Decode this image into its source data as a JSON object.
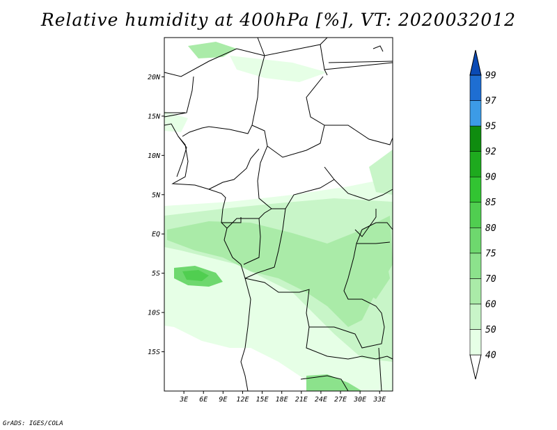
{
  "title": "Relative humidity at 400hPa [%], VT: 2020032012",
  "footer": "GrADS: IGES/COLA",
  "map": {
    "lon_range": [
      0,
      35
    ],
    "lat_range": [
      -20,
      25
    ],
    "lat_ticks": [
      {
        "value": 20,
        "label": "20N"
      },
      {
        "value": 15,
        "label": "15N"
      },
      {
        "value": 10,
        "label": "10N"
      },
      {
        "value": 5,
        "label": "5N"
      },
      {
        "value": 0,
        "label": "EQ"
      },
      {
        "value": -5,
        "label": "5S"
      },
      {
        "value": -10,
        "label": "10S"
      },
      {
        "value": -15,
        "label": "15S"
      }
    ],
    "lon_ticks": [
      {
        "value": 3,
        "label": "3E"
      },
      {
        "value": 6,
        "label": "6E"
      },
      {
        "value": 9,
        "label": "9E"
      },
      {
        "value": 12,
        "label": "12E"
      },
      {
        "value": 15,
        "label": "15E"
      },
      {
        "value": 18,
        "label": "18E"
      },
      {
        "value": 21,
        "label": "21E"
      },
      {
        "value": 24,
        "label": "24E"
      },
      {
        "value": 27,
        "label": "27E"
      },
      {
        "value": 30,
        "label": "30E"
      },
      {
        "value": 33,
        "label": "33E"
      }
    ]
  },
  "colorbar": {
    "levels": [
      "40",
      "50",
      "60",
      "70",
      "75",
      "80",
      "85",
      "90",
      "92",
      "95",
      "97",
      "99"
    ],
    "colors": [
      "#ffffff",
      "#e6ffe6",
      "#c8f5c8",
      "#aaeba8",
      "#8ce28c",
      "#6ed86e",
      "#50ce50",
      "#32c432",
      "#1eaa1e",
      "#0f8c0f",
      "#3c9be6",
      "#1e6ed2",
      "#0a4ab4"
    ]
  }
}
